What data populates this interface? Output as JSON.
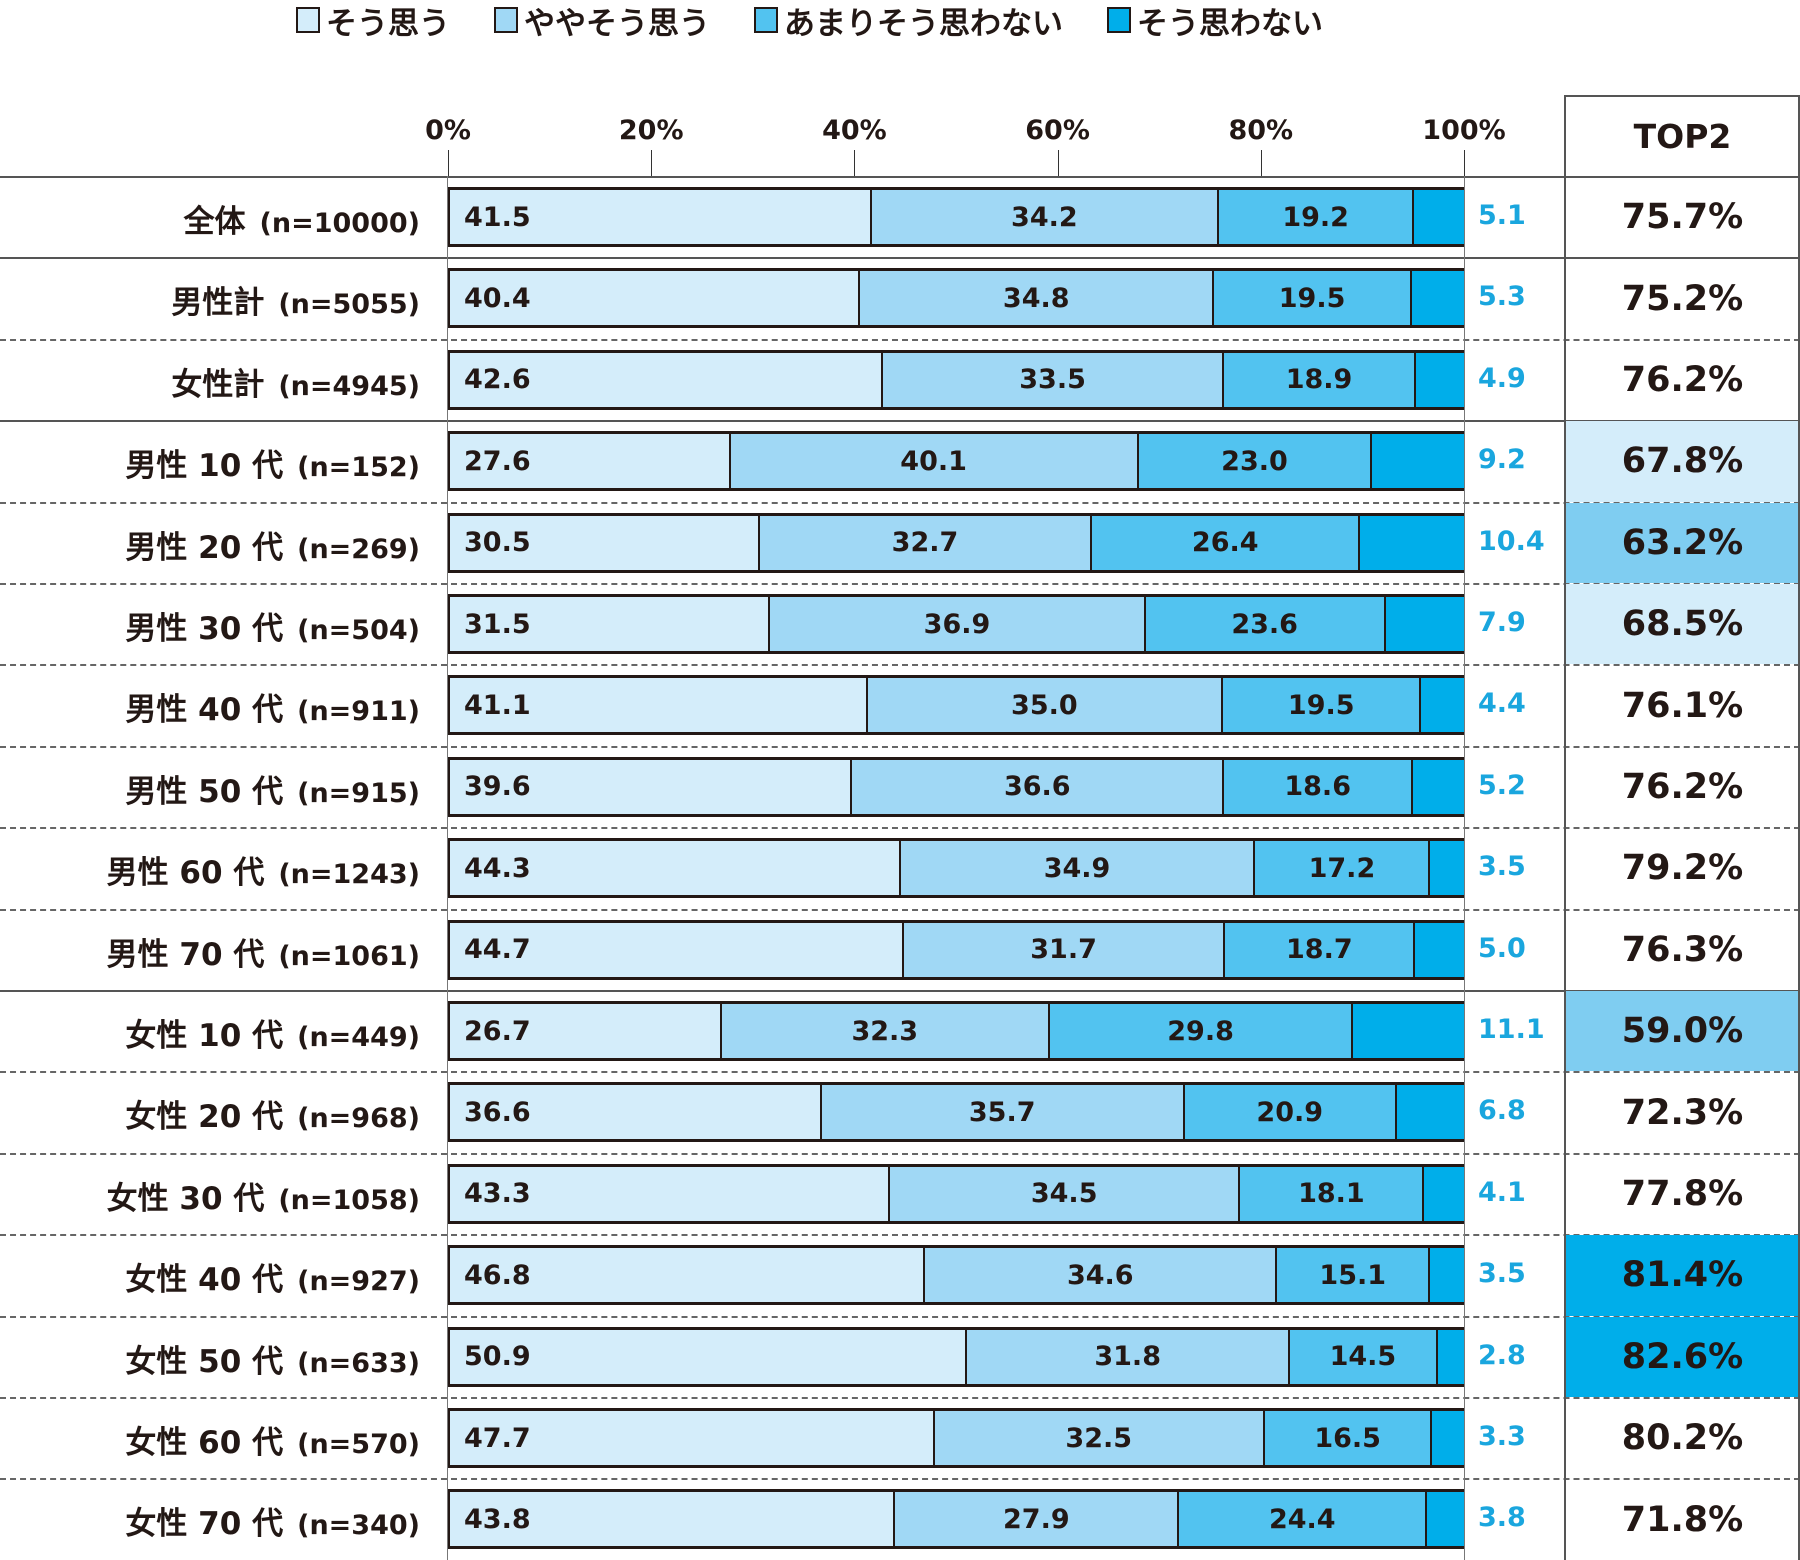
{
  "chart_data": {
    "type": "bar",
    "orientation": "horizontal",
    "stacked": true,
    "xlim": [
      0,
      100
    ],
    "x_ticks": [
      "0%",
      "20%",
      "40%",
      "60%",
      "80%",
      "100%"
    ],
    "legend_position": "top",
    "series": [
      {
        "name": "そう思う",
        "color": "#d4edfa"
      },
      {
        "name": "ややそう思う",
        "color": "#a0d8f5"
      },
      {
        "name": "あまりそう思わない",
        "color": "#52c3f0"
      },
      {
        "name": "そう思わない",
        "color": "#00aeea"
      }
    ],
    "extra_column_header": "TOP2",
    "rows": [
      {
        "label": "全体",
        "n": "(n=10000)",
        "values": [
          41.5,
          34.2,
          19.2,
          5.1
        ],
        "top2": "75.7%",
        "highlight": ""
      },
      {
        "label": "男性計",
        "n": "(n=5055)",
        "values": [
          40.4,
          34.8,
          19.5,
          5.3
        ],
        "top2": "75.2%",
        "highlight": ""
      },
      {
        "label": "女性計",
        "n": "(n=4945)",
        "values": [
          42.6,
          33.5,
          18.9,
          4.9
        ],
        "top2": "76.2%",
        "highlight": ""
      },
      {
        "label": "男性 10 代",
        "n": "(n=152)",
        "values": [
          27.6,
          40.1,
          23.0,
          9.2
        ],
        "top2": "67.8%",
        "highlight": "#d4edfa"
      },
      {
        "label": "男性 20 代",
        "n": "(n=269)",
        "values": [
          30.5,
          32.7,
          26.4,
          10.4
        ],
        "top2": "63.2%",
        "highlight": "#7fcdf1"
      },
      {
        "label": "男性 30 代",
        "n": "(n=504)",
        "values": [
          31.5,
          36.9,
          23.6,
          7.9
        ],
        "top2": "68.5%",
        "highlight": "#d4edfa"
      },
      {
        "label": "男性 40 代",
        "n": "(n=911)",
        "values": [
          41.1,
          35.0,
          19.5,
          4.4
        ],
        "top2": "76.1%",
        "highlight": ""
      },
      {
        "label": "男性 50 代",
        "n": "(n=915)",
        "values": [
          39.6,
          36.6,
          18.6,
          5.2
        ],
        "top2": "76.2%",
        "highlight": ""
      },
      {
        "label": "男性 60 代",
        "n": "(n=1243)",
        "values": [
          44.3,
          34.9,
          17.2,
          3.5
        ],
        "top2": "79.2%",
        "highlight": ""
      },
      {
        "label": "男性 70 代",
        "n": "(n=1061)",
        "values": [
          44.7,
          31.7,
          18.7,
          5.0
        ],
        "top2": "76.3%",
        "highlight": ""
      },
      {
        "label": "女性 10 代",
        "n": "(n=449)",
        "values": [
          26.7,
          32.3,
          29.8,
          11.1
        ],
        "top2": "59.0%",
        "highlight": "#7fcdf1"
      },
      {
        "label": "女性 20 代",
        "n": "(n=968)",
        "values": [
          36.6,
          35.7,
          20.9,
          6.8
        ],
        "top2": "72.3%",
        "highlight": ""
      },
      {
        "label": "女性 30 代",
        "n": "(n=1058)",
        "values": [
          43.3,
          34.5,
          18.1,
          4.1
        ],
        "top2": "77.8%",
        "highlight": ""
      },
      {
        "label": "女性 40 代",
        "n": "(n=927)",
        "values": [
          46.8,
          34.6,
          15.1,
          3.5
        ],
        "top2": "81.4%",
        "highlight": "#00aeea"
      },
      {
        "label": "女性 50 代",
        "n": "(n=633)",
        "values": [
          50.9,
          31.8,
          14.5,
          2.8
        ],
        "top2": "82.6%",
        "highlight": "#00aeea"
      },
      {
        "label": "女性 60 代",
        "n": "(n=570)",
        "values": [
          47.7,
          32.5,
          16.5,
          3.3
        ],
        "top2": "80.2%",
        "highlight": ""
      },
      {
        "label": "女性 70 代",
        "n": "(n=340)",
        "values": [
          43.8,
          27.9,
          24.4,
          3.8
        ],
        "top2": "71.8%",
        "highlight": ""
      }
    ]
  }
}
